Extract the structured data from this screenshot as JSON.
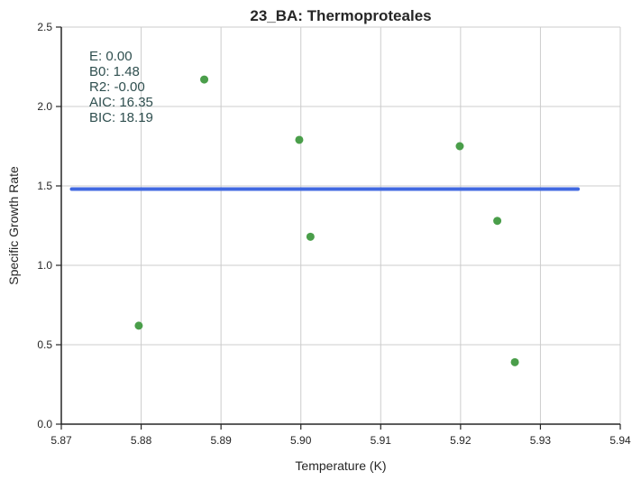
{
  "chart_data": {
    "type": "scatter",
    "title": "23_BA: Thermoproteales",
    "xlabel": "Temperature (K)",
    "ylabel": "Specific Growth Rate",
    "xlim": [
      5.87,
      5.94
    ],
    "ylim": [
      0.0,
      2.5
    ],
    "xticks": [
      "5.87",
      "5.88",
      "5.89",
      "5.90",
      "5.91",
      "5.92",
      "5.93",
      "5.94"
    ],
    "yticks": [
      "0.0",
      "0.5",
      "1.0",
      "1.5",
      "2.0",
      "2.5"
    ],
    "grid": true,
    "points": [
      {
        "x": 5.8797,
        "y": 0.62
      },
      {
        "x": 5.8879,
        "y": 2.17
      },
      {
        "x": 5.8998,
        "y": 1.79
      },
      {
        "x": 5.9012,
        "y": 1.18
      },
      {
        "x": 5.9199,
        "y": 1.75
      },
      {
        "x": 5.9246,
        "y": 1.28
      },
      {
        "x": 5.9268,
        "y": 0.39
      }
    ],
    "fit_line": {
      "x": [
        5.8713,
        5.9347
      ],
      "y": [
        1.48,
        1.48
      ]
    },
    "annotations": [
      "E:  0.00",
      "B0:  1.48",
      "R2:  -0.00",
      "AIC: 16.35",
      "BIC: 18.19"
    ],
    "colors": {
      "points": "#4a9e4a",
      "line": "#4169e1",
      "grid": "#cccccc",
      "annotation": "#2f4f4f"
    }
  }
}
